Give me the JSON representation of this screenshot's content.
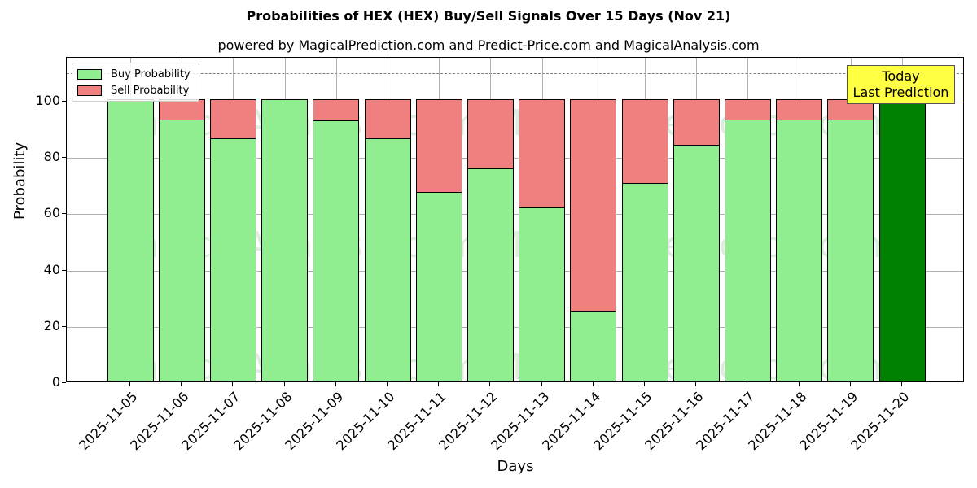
{
  "chart_data": {
    "type": "bar",
    "stacked": true,
    "title": "Probabilities of HEX (HEX) Buy/Sell Signals Over 15 Days (Nov 21)",
    "subtitle": "powered by MagicalPrediction.com and Predict-Price.com and MagicalAnalysis.com",
    "xlabel": "Days",
    "ylabel": "Probability",
    "ylim": [
      0,
      115
    ],
    "yticks": [
      0,
      20,
      40,
      60,
      80,
      100
    ],
    "grid": true,
    "legend_position": "upper left",
    "reference_line": {
      "y": 110,
      "style": "dashed",
      "color": "#808080"
    },
    "categories": [
      "2025-11-05",
      "2025-11-06",
      "2025-11-07",
      "2025-11-08",
      "2025-11-09",
      "2025-11-10",
      "2025-11-11",
      "2025-11-12",
      "2025-11-13",
      "2025-11-14",
      "2025-11-15",
      "2025-11-16",
      "2025-11-17",
      "2025-11-18",
      "2025-11-19",
      "2025-11-20"
    ],
    "series": [
      {
        "name": "Buy Probability",
        "color": "#90ee90",
        "values": [
          100,
          92.9,
          86.0,
          100,
          92.4,
          86.0,
          67.0,
          75.3,
          61.6,
          25.0,
          70.1,
          83.7,
          92.7,
          92.7,
          92.7,
          100
        ]
      },
      {
        "name": "Sell Probability",
        "color": "#f08080",
        "values": [
          0,
          7.1,
          14.0,
          0,
          7.6,
          14.0,
          33.0,
          24.7,
          38.4,
          75.0,
          29.9,
          16.3,
          7.3,
          7.3,
          7.3,
          0
        ]
      }
    ],
    "highlight": {
      "category": "2025-11-20",
      "color": "#008000",
      "annotation": "Today\nLast Prediction"
    },
    "annotation": {
      "line1": "Today",
      "line2": "Last Prediction",
      "background": "#ffff44"
    }
  },
  "legend": {
    "buy": "Buy Probability",
    "sell": "Sell Probability"
  },
  "watermarks": [
    "MagicalAnalysis.com",
    "MagicalPrediction.com"
  ]
}
